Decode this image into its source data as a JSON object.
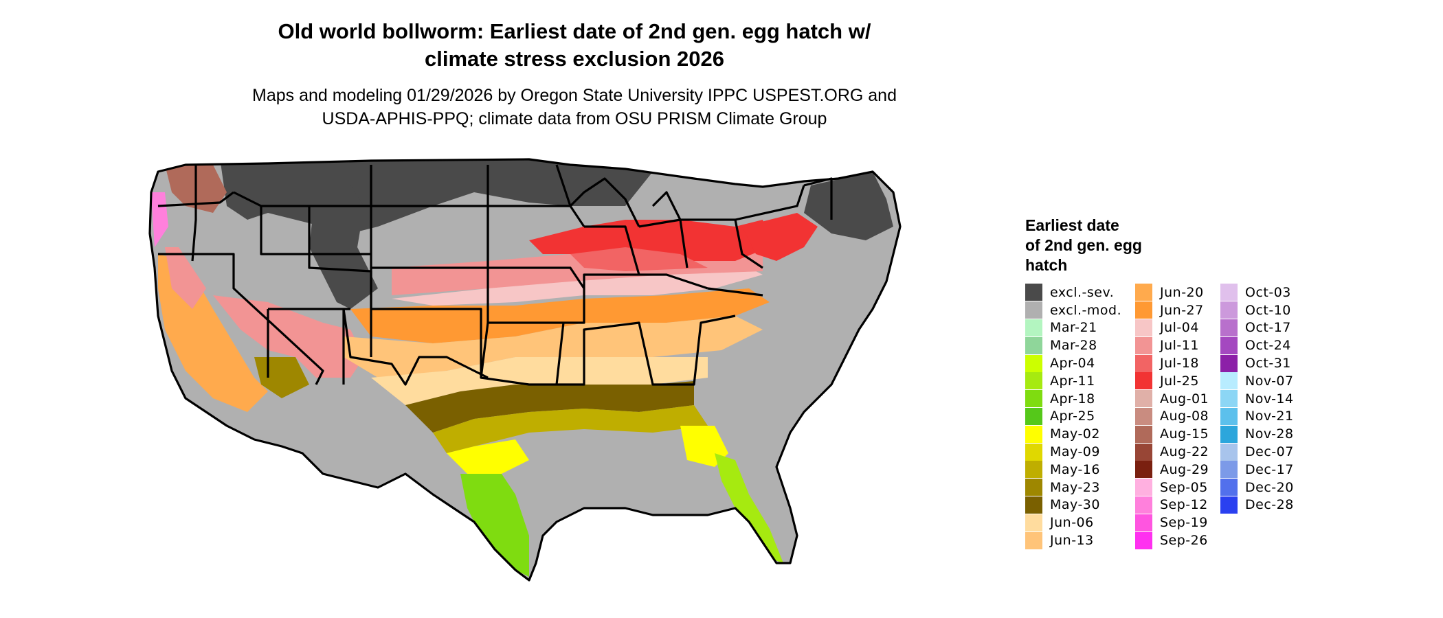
{
  "title": [
    "Old world bollworm: Earliest date of 2nd gen. egg hatch w/",
    "climate stress exclusion 2026"
  ],
  "subtitle": [
    "Maps and modeling 01/29/2026 by Oregon State University IPPC USPEST.ORG and",
    "USDA-APHIS-PPQ; climate data from OSU PRISM Climate Group"
  ],
  "legend": {
    "title": [
      "Earliest date",
      "of 2nd gen. egg",
      "hatch"
    ],
    "columns": [
      [
        {
          "label": "excl.-sev.",
          "color": "#4a4a4a"
        },
        {
          "label": "excl.-mod.",
          "color": "#b0b0b0"
        },
        {
          "label": "Mar-21",
          "color": "#b3f5c0"
        },
        {
          "label": "Mar-28",
          "color": "#8fd69a"
        },
        {
          "label": "Apr-04",
          "color": "#ccff00"
        },
        {
          "label": "Apr-11",
          "color": "#a6ea10"
        },
        {
          "label": "Apr-18",
          "color": "#7fdc10"
        },
        {
          "label": "Apr-25",
          "color": "#55c81a"
        },
        {
          "label": "May-02",
          "color": "#ffff00"
        },
        {
          "label": "May-09",
          "color": "#e0d800"
        },
        {
          "label": "May-16",
          "color": "#bfae00"
        },
        {
          "label": "May-23",
          "color": "#9e8700"
        },
        {
          "label": "May-30",
          "color": "#7a6000"
        },
        {
          "label": "Jun-06",
          "color": "#ffdc9e"
        },
        {
          "label": "Jun-13",
          "color": "#ffc479"
        }
      ],
      [
        {
          "label": "Jun-20",
          "color": "#ffaa4d"
        },
        {
          "label": "Jun-27",
          "color": "#ff9933"
        },
        {
          "label": "Jul-04",
          "color": "#f7c6c6"
        },
        {
          "label": "Jul-11",
          "color": "#f29494"
        },
        {
          "label": "Jul-18",
          "color": "#f26464"
        },
        {
          "label": "Jul-25",
          "color": "#f23333"
        },
        {
          "label": "Aug-01",
          "color": "#e0b0a8"
        },
        {
          "label": "Aug-08",
          "color": "#c98c80"
        },
        {
          "label": "Aug-15",
          "color": "#b06a5a"
        },
        {
          "label": "Aug-22",
          "color": "#984636"
        },
        {
          "label": "Aug-29",
          "color": "#7a2010"
        },
        {
          "label": "Sep-05",
          "color": "#ffb0e0"
        },
        {
          "label": "Sep-12",
          "color": "#ff80dc"
        },
        {
          "label": "Sep-19",
          "color": "#ff55e0"
        },
        {
          "label": "Sep-26",
          "color": "#ff30f0"
        }
      ],
      [
        {
          "label": "Oct-03",
          "color": "#e0c0ec"
        },
        {
          "label": "Oct-10",
          "color": "#cc99dc"
        },
        {
          "label": "Oct-17",
          "color": "#b870cc"
        },
        {
          "label": "Oct-24",
          "color": "#a448c0"
        },
        {
          "label": "Oct-31",
          "color": "#8c20a8"
        },
        {
          "label": "Nov-07",
          "color": "#b8ecff"
        },
        {
          "label": "Nov-14",
          "color": "#8cd6f5"
        },
        {
          "label": "Nov-21",
          "color": "#5cc0ec"
        },
        {
          "label": "Nov-28",
          "color": "#2ca6dc"
        },
        {
          "label": "Dec-07",
          "color": "#a8c4ec"
        },
        {
          "label": "Dec-17",
          "color": "#7c9ae8"
        },
        {
          "label": "Dec-20",
          "color": "#5270ec"
        },
        {
          "label": "Dec-28",
          "color": "#2a40f0"
        }
      ]
    ]
  }
}
